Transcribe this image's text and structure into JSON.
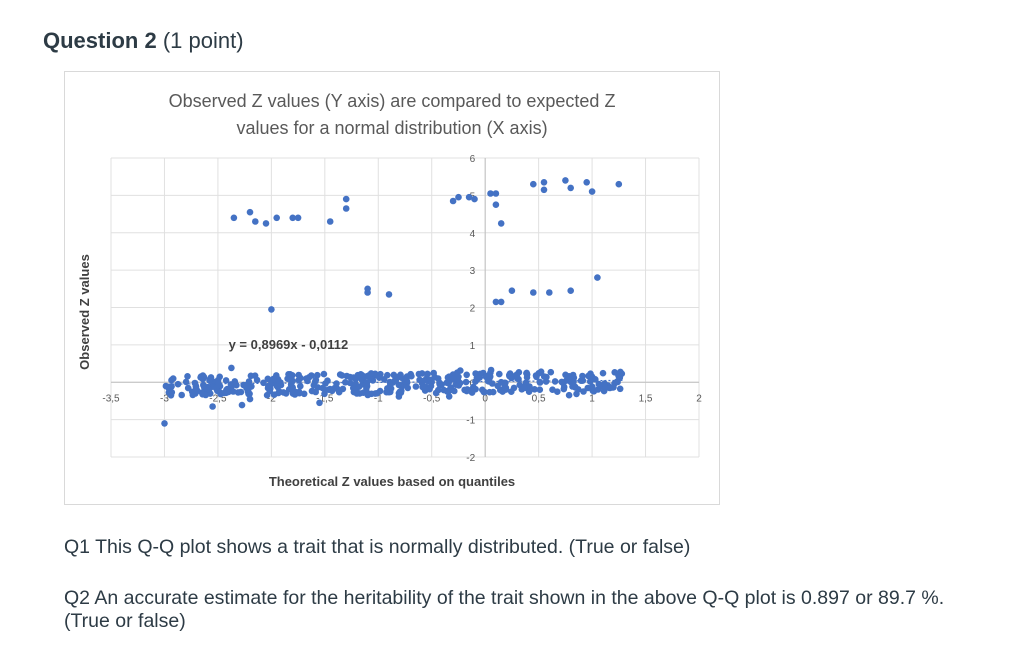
{
  "question": {
    "title": "Question 2",
    "points": "(1 point)"
  },
  "chart_data": {
    "type": "scatter",
    "title_line1": "Observed Z values (Y axis) are compared to expected Z",
    "title_line2": "values for a normal distribution (X axis)",
    "xlabel": "Theoretical Z values based on quantiles",
    "ylabel": "Observed Z values",
    "xlim": [
      -3.5,
      2
    ],
    "ylim": [
      -2,
      6
    ],
    "x_ticks": [
      "-3,5",
      "-3",
      "-2,5",
      "-2",
      "-1,5",
      "-1",
      "-0,5",
      "0",
      "0,5",
      "1",
      "1,5",
      "2"
    ],
    "y_ticks": [
      "-2",
      "-1",
      "0",
      "1",
      "2",
      "3",
      "4",
      "5",
      "6"
    ],
    "grid": true,
    "trendline_label": "y = 0,8969x - 0,0112",
    "trendline": {
      "slope": 0.8969,
      "intercept": -0.0112
    },
    "point_color": "#4472c4",
    "series": [
      {
        "x": [
          -2.35,
          -2.2,
          -2.15,
          -2.05,
          -1.95,
          -1.8,
          -1.75,
          -1.45,
          -1.3,
          -1.3,
          -0.3,
          -0.25,
          -0.1,
          -0.15,
          0.05,
          0.1,
          0.1,
          0.15,
          0.45,
          0.55,
          0.55,
          0.75,
          0.8,
          0.95,
          1.0,
          1.25,
          -2.0,
          -1.1,
          -1.1,
          -0.9,
          0.15,
          0.1,
          0.25,
          0.45,
          0.6,
          0.8,
          1.05,
          -3.0,
          -2.55,
          -2.2,
          -1.55,
          -1.2
        ],
        "y": [
          4.4,
          4.55,
          4.3,
          4.25,
          4.4,
          4.4,
          4.4,
          4.3,
          4.65,
          4.9,
          4.85,
          4.95,
          4.9,
          4.95,
          5.05,
          4.75,
          5.05,
          4.25,
          5.3,
          5.35,
          5.15,
          5.4,
          5.2,
          5.35,
          5.1,
          5.3,
          1.95,
          2.5,
          2.4,
          2.35,
          2.15,
          2.15,
          2.45,
          2.4,
          2.4,
          2.45,
          2.8,
          -1.1,
          -0.65,
          -0.45,
          -0.55,
          -0.3
        ]
      }
    ]
  },
  "questions": {
    "q1": "Q1 This Q-Q plot shows a trait that is normally distributed. (True or false)",
    "q2": "Q2 An accurate estimate for the heritability of the trait shown in the above Q-Q plot is 0.897 or 89.7 %. (True or false)"
  }
}
